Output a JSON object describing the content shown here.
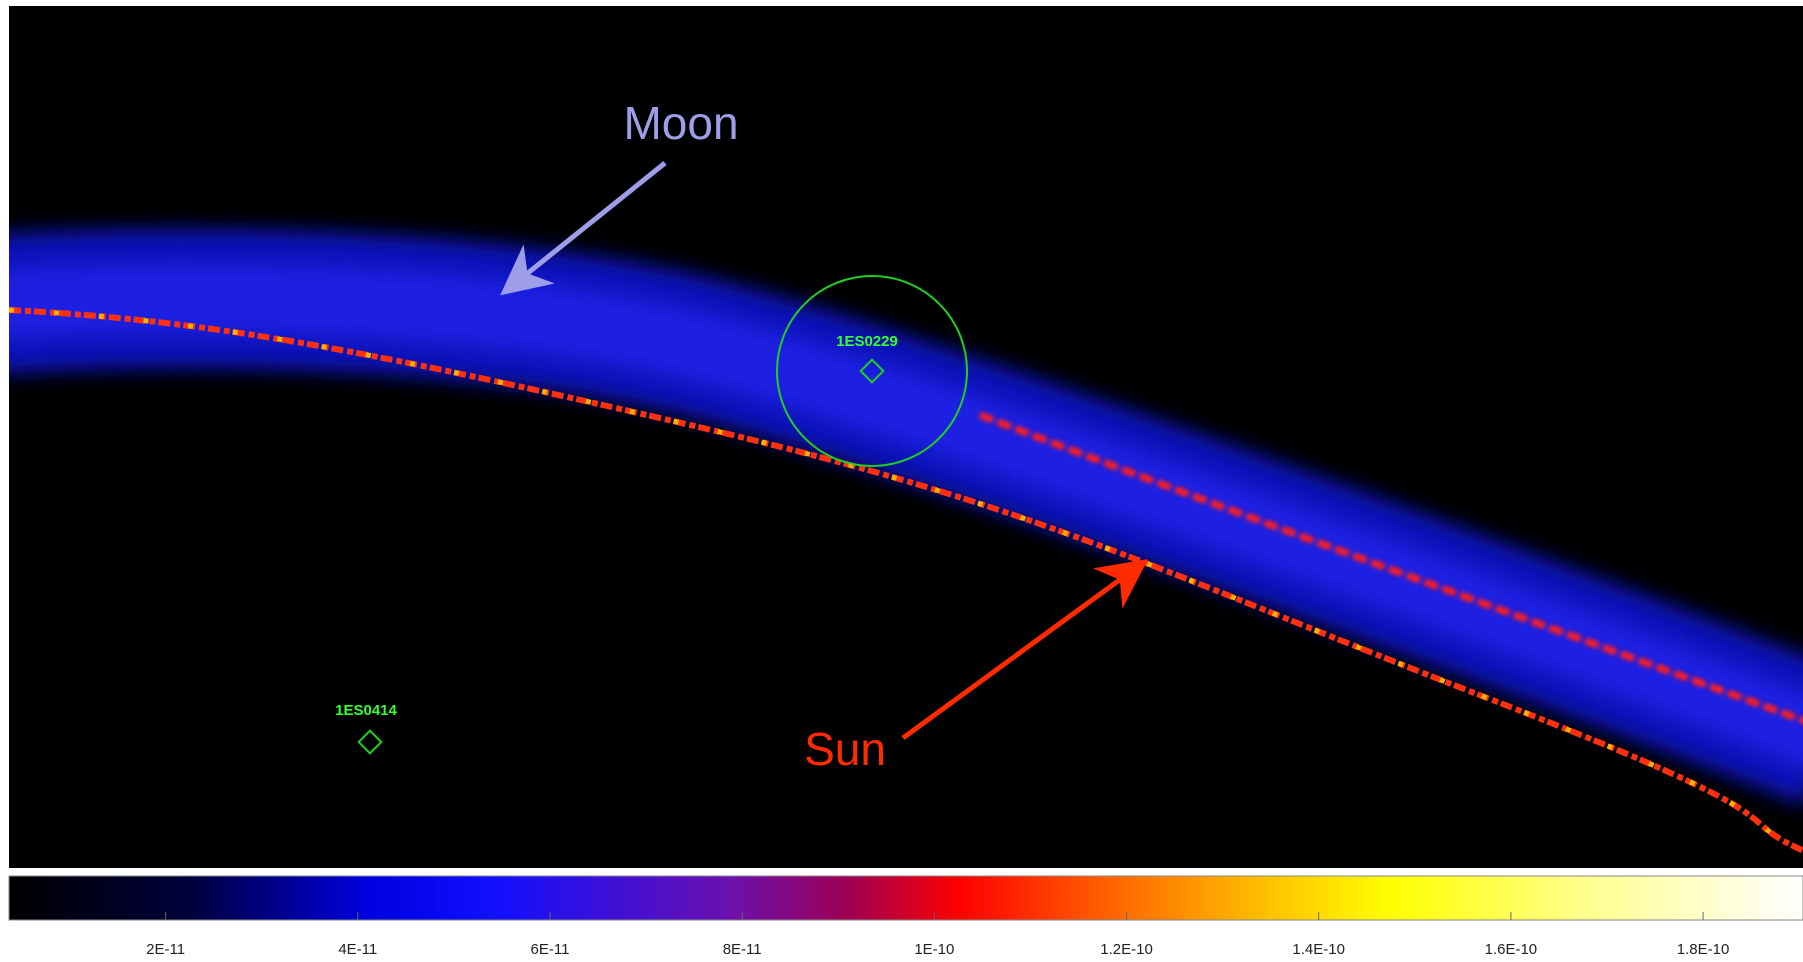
{
  "annotations": {
    "moon": "Moon",
    "sun": "Sun"
  },
  "sources": [
    {
      "label": "1ES0229"
    },
    {
      "label": "1ES0414"
    }
  ],
  "colorbar": {
    "lim": [
      3.7e-12,
      1.904e-10
    ],
    "ticks": [
      {
        "value": 2e-11,
        "label": "2E-11"
      },
      {
        "value": 4e-11,
        "label": "4E-11"
      },
      {
        "value": 6e-11,
        "label": "6E-11"
      },
      {
        "value": 8e-11,
        "label": "8E-11"
      },
      {
        "value": 1e-10,
        "label": "1E-10"
      },
      {
        "value": 1.2e-10,
        "label": "1.2E-10"
      },
      {
        "value": 1.4e-10,
        "label": "1.4E-10"
      },
      {
        "value": 1.6e-10,
        "label": "1.6E-10"
      },
      {
        "value": 1.8e-10,
        "label": "1.8E-10"
      }
    ]
  }
}
